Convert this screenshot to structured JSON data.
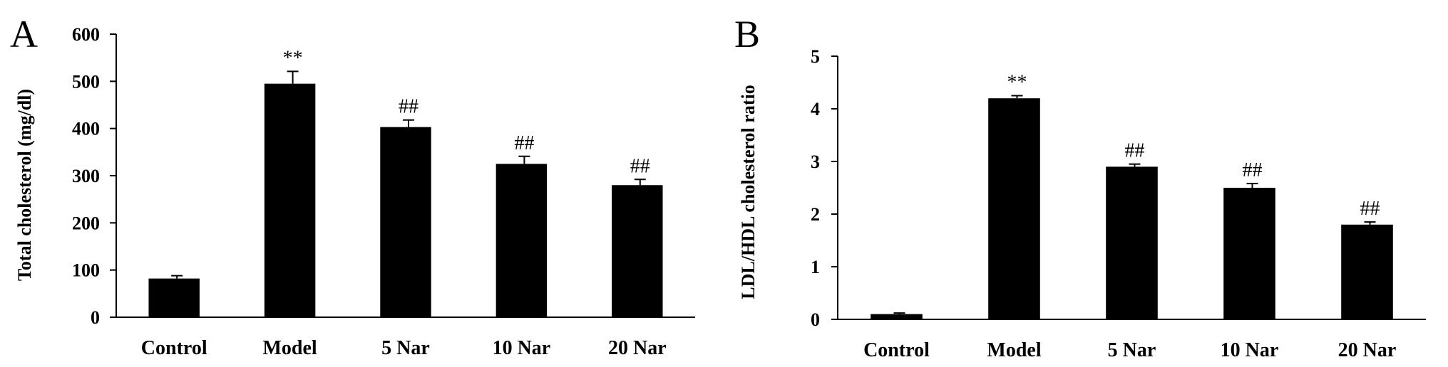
{
  "chart_data": [
    {
      "panel": "A",
      "type": "bar",
      "categories": [
        "Control",
        "Model",
        "5 Nar",
        "10 Nar",
        "20 Nar"
      ],
      "values": [
        82,
        495,
        403,
        325,
        280
      ],
      "errors": [
        6,
        26,
        15,
        16,
        12
      ],
      "annotations": [
        "",
        "**",
        "##",
        "##",
        "##"
      ],
      "ylabel": "Total cholesterol (mg/dl)",
      "ylim": [
        0,
        600
      ],
      "yticks": [
        "0",
        "100",
        "200",
        "300",
        "400",
        "500",
        "600"
      ],
      "bar_color": "#000000"
    },
    {
      "panel": "B",
      "type": "bar",
      "categories": [
        "Control",
        "Model",
        "5 Nar",
        "10 Nar",
        "20 Nar"
      ],
      "values": [
        0.1,
        4.2,
        2.9,
        2.5,
        1.8
      ],
      "errors": [
        0.02,
        0.05,
        0.05,
        0.08,
        0.05
      ],
      "annotations": [
        "",
        "**",
        "##",
        "##",
        "##"
      ],
      "ylabel": "LDL/HDL cholesterol ratio",
      "ylim": [
        0,
        5
      ],
      "yticks": [
        "0",
        "1",
        "2",
        "3",
        "4",
        "5"
      ],
      "bar_color": "#000000"
    }
  ]
}
